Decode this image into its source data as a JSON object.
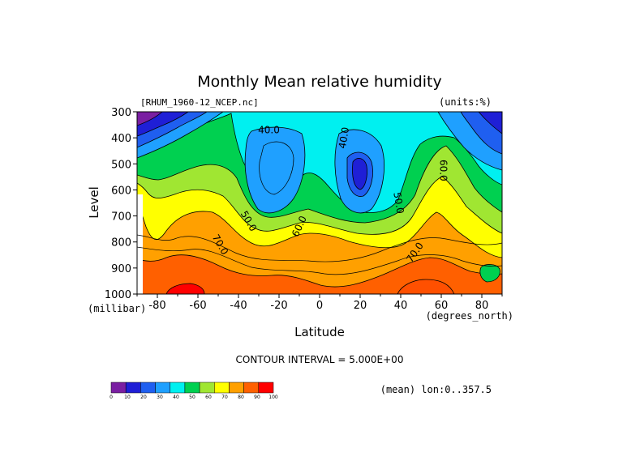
{
  "chart_data": {
    "type": "heatmap",
    "title": "Monthly Mean relative humidity",
    "dataset_label": "[RHUM_1960-12_NCEP.nc]",
    "units_label": "(units:%)",
    "xlabel": "Latitude",
    "ylabel": "Level",
    "x_units": "(degrees_north)",
    "y_units": "(millibar)",
    "xlim": [
      -90,
      90
    ],
    "ylim": [
      1000,
      300
    ],
    "x_ticks": [
      "-80",
      "-60",
      "-40",
      "-20",
      "0",
      "20",
      "40",
      "60",
      "80"
    ],
    "y_ticks": [
      "300",
      "400",
      "500",
      "600",
      "700",
      "800",
      "900",
      "1000"
    ],
    "contour_interval": "CONTOUR INTERVAL = 5.000E+00",
    "mean_label": "(mean) lon:0..357.5",
    "contour_labels": [
      {
        "text": "40.0",
        "lat": -25,
        "lev": 370,
        "rot": 0
      },
      {
        "text": "40.0",
        "lat": 12,
        "lev": 400,
        "rot": -80
      },
      {
        "text": "50.0",
        "lat": 39,
        "lev": 650,
        "rot": 80
      },
      {
        "text": "50.0",
        "lat": -35,
        "lev": 720,
        "rot": 60
      },
      {
        "text": "60.0",
        "lat": 61,
        "lev": 525,
        "rot": 90
      },
      {
        "text": "60.0",
        "lat": -10,
        "lev": 740,
        "rot": -65
      },
      {
        "text": "70.0",
        "lat": -49,
        "lev": 810,
        "rot": 60
      },
      {
        "text": "70.0",
        "lat": 47,
        "lev": 840,
        "rot": -55
      }
    ],
    "color_scale": {
      "labels": [
        "0",
        "10",
        "20",
        "30",
        "40",
        "50",
        "60",
        "70",
        "80",
        "90",
        "100"
      ],
      "colors": [
        "#7a1fa2",
        "#1f1fd6",
        "#1f5ff0",
        "#1fa0ff",
        "#00f0f0",
        "#00d050",
        "#a0e632",
        "#ffff00",
        "#ffa000",
        "#ff6000",
        "#ff0000"
      ]
    }
  }
}
